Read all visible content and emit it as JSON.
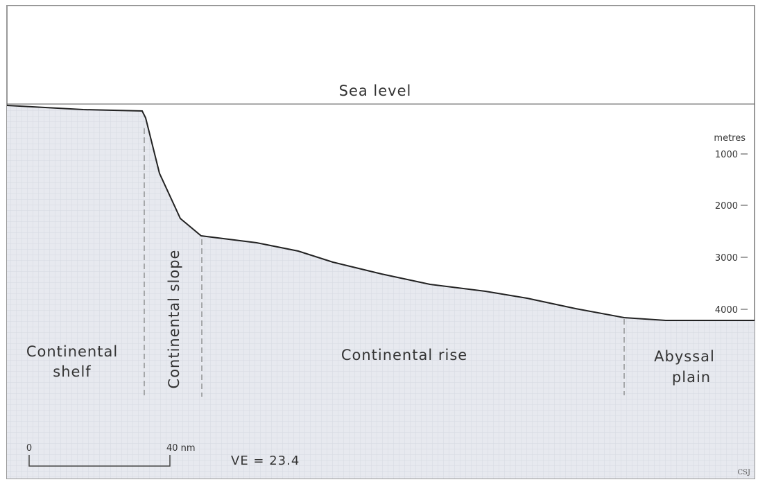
{
  "sea_level": "Sea level",
  "depth_axis": {
    "unit": "metres",
    "ticks": [
      1000,
      2000,
      3000,
      4000
    ]
  },
  "zones": {
    "shelf": [
      "Continental",
      "shelf"
    ],
    "slope": "Continental slope",
    "rise": "Continental rise",
    "plain": [
      "Abyssal",
      "plain"
    ]
  },
  "scale_bar": {
    "start": "0",
    "end": "40 nm"
  },
  "vertical_exaggeration": "VE = 23.4",
  "credit": "CSJ"
}
